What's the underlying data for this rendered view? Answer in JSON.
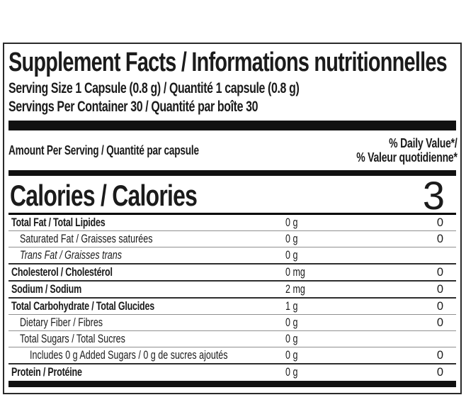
{
  "label": {
    "title": "Supplement Facts / Informations nutritionnelles",
    "serving_size": "Serving Size 1 Capsule (0.8 g) / Quantité 1 capsule (0.8 g)",
    "servings_per_container": "Servings Per Container 30 / Quantité par boîte 30",
    "amount_per_serving": "Amount Per Serving / Quantité par capsule",
    "daily_value_header_line1": "% Daily Value*/",
    "daily_value_header_line2": "% Valeur quotidienne*",
    "calories_label": "Calories / Calories",
    "calories_value": "3",
    "rows": [
      {
        "name": "Total Fat / Total Lipides",
        "amount": "0 g",
        "daily_value": "0",
        "emphasis": "bold",
        "indent": 0,
        "separator": "none"
      },
      {
        "name": "Saturated Fat / Graisses saturées",
        "amount": "0 g",
        "daily_value": "0",
        "emphasis": "regular",
        "indent": 1,
        "separator": "thin"
      },
      {
        "name": "Trans Fat / Graisses trans",
        "amount": "0 g",
        "daily_value": "",
        "emphasis": "italic",
        "indent": 1,
        "separator": "thin"
      },
      {
        "name": "Cholesterol / Cholestérol",
        "amount": "0 mg",
        "daily_value": "0",
        "emphasis": "bold",
        "indent": 0,
        "separator": "medium"
      },
      {
        "name": "Sodium / Sodium",
        "amount": "2 mg",
        "daily_value": "0",
        "emphasis": "bold",
        "indent": 0,
        "separator": "medium"
      },
      {
        "name": "Total Carbohydrate / Total Glucides",
        "amount": "1 g",
        "daily_value": "0",
        "emphasis": "bold",
        "indent": 0,
        "separator": "medium"
      },
      {
        "name": "Dietary Fiber / Fibres",
        "amount": "0 g",
        "daily_value": "0",
        "emphasis": "regular",
        "indent": 1,
        "separator": "thin"
      },
      {
        "name": "Total Sugars / Total Sucres",
        "amount": "0 g",
        "daily_value": "",
        "emphasis": "regular",
        "indent": 1,
        "separator": "thin"
      },
      {
        "name": "Includes 0 g Added Sugars / 0 g de sucres ajoutés",
        "amount": "0 g",
        "daily_value": "0",
        "emphasis": "regular",
        "indent": 2,
        "separator": "thin"
      },
      {
        "name": "Protein / Protéine",
        "amount": "0 g",
        "daily_value": "0",
        "emphasis": "bold",
        "indent": 0,
        "separator": "medium"
      }
    ]
  }
}
